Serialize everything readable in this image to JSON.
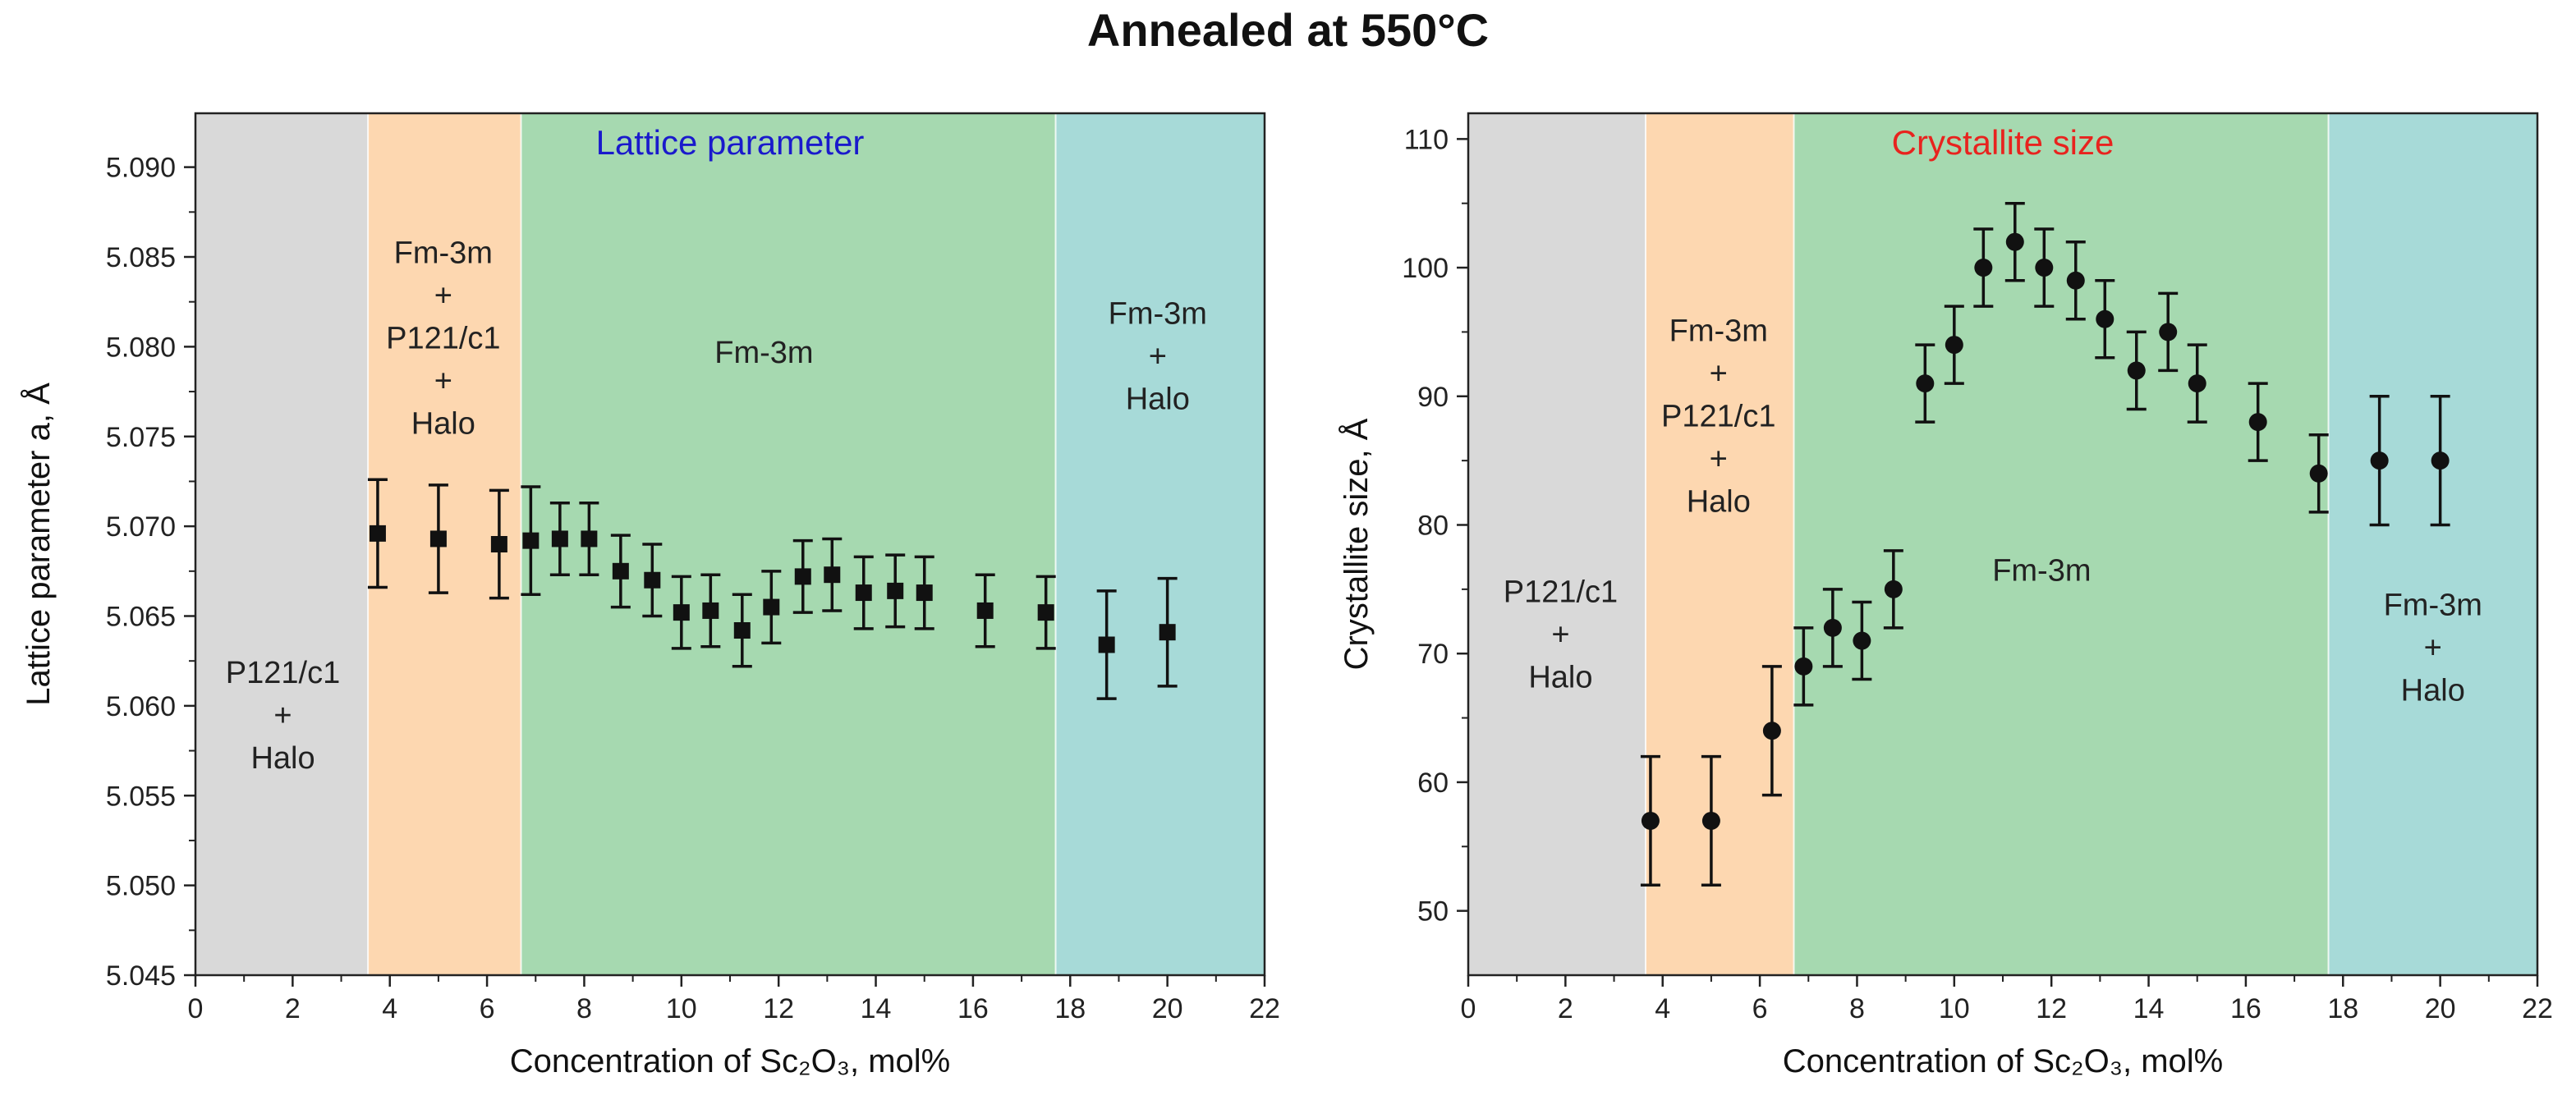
{
  "figure_title": "Annealed at 550°C",
  "chart_data": [
    {
      "type": "scatter",
      "title": "Lattice parameter",
      "title_color": "#1a1acc",
      "xlabel": "Concentration of Sc₂O₃, mol%",
      "ylabel": "Lattice parameter a, Å",
      "xlim": [
        0,
        22
      ],
      "ylim": [
        5.045,
        5.093
      ],
      "xticks": [
        0,
        2,
        4,
        6,
        8,
        10,
        12,
        14,
        16,
        18,
        20,
        22
      ],
      "yticks": [
        5.045,
        5.05,
        5.055,
        5.06,
        5.065,
        5.07,
        5.075,
        5.08,
        5.085,
        5.09
      ],
      "ytick_labels": [
        "5.045",
        "5.050",
        "5.055",
        "5.060",
        "5.065",
        "5.070",
        "5.075",
        "5.080",
        "5.085",
        "5.090"
      ],
      "marker": "square",
      "regions": [
        {
          "x0": 0,
          "x1": 3.55,
          "color": "#d9d9d9",
          "label": [
            "P121/c1",
            "+",
            "Halo"
          ],
          "label_x": 1.8,
          "label_y": 5.0595
        },
        {
          "x0": 3.55,
          "x1": 6.7,
          "color": "#fdd7b0",
          "label": [
            "Fm-3m",
            "+",
            "P121/c1",
            "+",
            "Halo"
          ],
          "label_x": 5.1,
          "label_y": 5.0805
        },
        {
          "x0": 6.7,
          "x1": 17.7,
          "color": "#a6d9b0",
          "label": [
            "Fm-3m"
          ],
          "label_x": 11.7,
          "label_y": 5.0797
        },
        {
          "x0": 17.7,
          "x1": 22,
          "color": "#a7dad8",
          "label": [
            "Fm-3m",
            "+",
            "Halo"
          ],
          "label_x": 19.8,
          "label_y": 5.0795
        }
      ],
      "points": [
        {
          "x": 3.75,
          "y": 5.0696,
          "err": 0.003
        },
        {
          "x": 5.0,
          "y": 5.0693,
          "err": 0.003
        },
        {
          "x": 6.25,
          "y": 5.069,
          "err": 0.003
        },
        {
          "x": 6.9,
          "y": 5.0692,
          "err": 0.003
        },
        {
          "x": 7.5,
          "y": 5.0693,
          "err": 0.002
        },
        {
          "x": 8.1,
          "y": 5.0693,
          "err": 0.002
        },
        {
          "x": 8.75,
          "y": 5.0675,
          "err": 0.002
        },
        {
          "x": 9.4,
          "y": 5.067,
          "err": 0.002
        },
        {
          "x": 10.0,
          "y": 5.0652,
          "err": 0.002
        },
        {
          "x": 10.6,
          "y": 5.0653,
          "err": 0.002
        },
        {
          "x": 11.25,
          "y": 5.0642,
          "err": 0.002
        },
        {
          "x": 11.85,
          "y": 5.0655,
          "err": 0.002
        },
        {
          "x": 12.5,
          "y": 5.0672,
          "err": 0.002
        },
        {
          "x": 13.1,
          "y": 5.0673,
          "err": 0.002
        },
        {
          "x": 13.75,
          "y": 5.0663,
          "err": 0.002
        },
        {
          "x": 14.4,
          "y": 5.0664,
          "err": 0.002
        },
        {
          "x": 15.0,
          "y": 5.0663,
          "err": 0.002
        },
        {
          "x": 16.25,
          "y": 5.0653,
          "err": 0.002
        },
        {
          "x": 17.5,
          "y": 5.0652,
          "err": 0.002
        },
        {
          "x": 18.75,
          "y": 5.0634,
          "err": 0.003
        },
        {
          "x": 20.0,
          "y": 5.0641,
          "err": 0.003
        }
      ]
    },
    {
      "type": "scatter",
      "title": "Crystallite size",
      "title_color": "#e8231e",
      "xlabel": "Concentration of Sc₂O₃, mol%",
      "ylabel": "Crystallite size, Å",
      "xlim": [
        0,
        22
      ],
      "ylim": [
        45,
        112
      ],
      "xticks": [
        0,
        2,
        4,
        6,
        8,
        10,
        12,
        14,
        16,
        18,
        20,
        22
      ],
      "yticks": [
        50,
        60,
        70,
        80,
        90,
        100,
        110
      ],
      "ytick_labels": [
        "50",
        "60",
        "70",
        "80",
        "90",
        "100",
        "110"
      ],
      "marker": "circle",
      "regions": [
        {
          "x0": 0,
          "x1": 3.65,
          "color": "#d9d9d9",
          "label": [
            "P121/c1",
            "+",
            "Halo"
          ],
          "label_x": 1.9,
          "label_y": 71.5
        },
        {
          "x0": 3.65,
          "x1": 6.7,
          "color": "#fdd7b0",
          "label": [
            "Fm-3m",
            "+",
            "P121/c1",
            "+",
            "Halo"
          ],
          "label_x": 5.15,
          "label_y": 88.5
        },
        {
          "x0": 6.7,
          "x1": 17.7,
          "color": "#a6d9b0",
          "label": [
            "Fm-3m"
          ],
          "label_x": 11.8,
          "label_y": 76.5
        },
        {
          "x0": 17.7,
          "x1": 22,
          "color": "#a7dad8",
          "label": [
            "Fm-3m",
            "+",
            "Halo"
          ],
          "label_x": 19.85,
          "label_y": 70.5
        }
      ],
      "points": [
        {
          "x": 3.75,
          "y": 57,
          "err": 5
        },
        {
          "x": 5.0,
          "y": 57,
          "err": 5
        },
        {
          "x": 6.25,
          "y": 64,
          "err": 5
        },
        {
          "x": 6.9,
          "y": 69,
          "err": 3
        },
        {
          "x": 7.5,
          "y": 72,
          "err": 3
        },
        {
          "x": 8.1,
          "y": 71,
          "err": 3
        },
        {
          "x": 8.75,
          "y": 75,
          "err": 3
        },
        {
          "x": 9.4,
          "y": 91,
          "err": 3
        },
        {
          "x": 10.0,
          "y": 94,
          "err": 3
        },
        {
          "x": 10.6,
          "y": 100,
          "err": 3
        },
        {
          "x": 11.25,
          "y": 102,
          "err": 3
        },
        {
          "x": 11.85,
          "y": 100,
          "err": 3
        },
        {
          "x": 12.5,
          "y": 99,
          "err": 3
        },
        {
          "x": 13.1,
          "y": 96,
          "err": 3
        },
        {
          "x": 13.75,
          "y": 92,
          "err": 3
        },
        {
          "x": 14.4,
          "y": 95,
          "err": 3
        },
        {
          "x": 15.0,
          "y": 91,
          "err": 3
        },
        {
          "x": 16.25,
          "y": 88,
          "err": 3
        },
        {
          "x": 17.5,
          "y": 84,
          "err": 3
        },
        {
          "x": 18.75,
          "y": 85,
          "err": 5
        },
        {
          "x": 20.0,
          "y": 85,
          "err": 5
        }
      ]
    }
  ]
}
